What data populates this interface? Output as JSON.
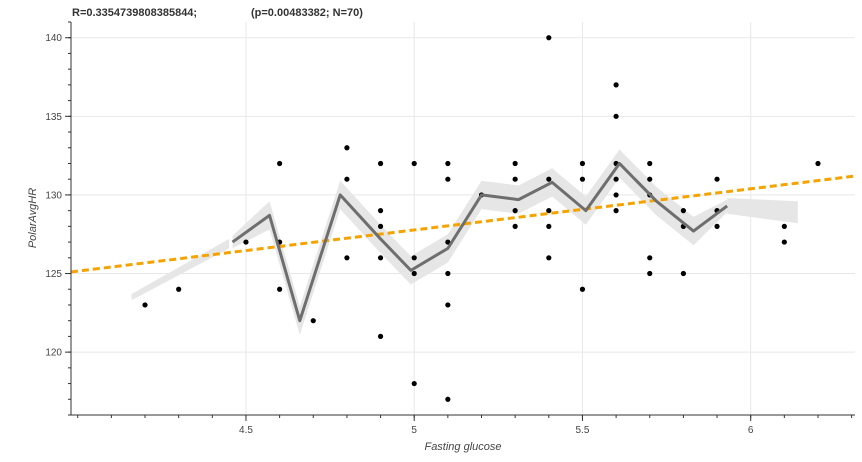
{
  "chart_data": {
    "type": "scatter",
    "title_stat": "R=0.3354739808385844;",
    "title_info": "(p=0.00483382; N=70)",
    "xlabel": "Fasting glucose",
    "ylabel": "PolarAvgHR",
    "xlim": [
      3.98,
      6.31
    ],
    "ylim": [
      116,
      141
    ],
    "x_ticks": [
      "4.5",
      "5",
      "5.5",
      "6"
    ],
    "y_ticks": [
      "120",
      "125",
      "130",
      "135",
      "140"
    ],
    "grid": true,
    "points": [
      {
        "x": 4.2,
        "y": 123
      },
      {
        "x": 4.3,
        "y": 124
      },
      {
        "x": 4.5,
        "y": 127
      },
      {
        "x": 4.6,
        "y": 132
      },
      {
        "x": 4.6,
        "y": 127
      },
      {
        "x": 4.6,
        "y": 124
      },
      {
        "x": 4.7,
        "y": 122
      },
      {
        "x": 4.8,
        "y": 133
      },
      {
        "x": 4.8,
        "y": 131
      },
      {
        "x": 4.8,
        "y": 126
      },
      {
        "x": 4.9,
        "y": 132
      },
      {
        "x": 4.9,
        "y": 129
      },
      {
        "x": 4.9,
        "y": 128
      },
      {
        "x": 4.9,
        "y": 126
      },
      {
        "x": 4.9,
        "y": 121
      },
      {
        "x": 5.0,
        "y": 132
      },
      {
        "x": 5.0,
        "y": 126
      },
      {
        "x": 5.0,
        "y": 125
      },
      {
        "x": 5.0,
        "y": 118
      },
      {
        "x": 5.1,
        "y": 132
      },
      {
        "x": 5.1,
        "y": 131
      },
      {
        "x": 5.1,
        "y": 127
      },
      {
        "x": 5.1,
        "y": 125
      },
      {
        "x": 5.1,
        "y": 123
      },
      {
        "x": 5.1,
        "y": 117
      },
      {
        "x": 5.2,
        "y": 130
      },
      {
        "x": 5.3,
        "y": 132
      },
      {
        "x": 5.3,
        "y": 131
      },
      {
        "x": 5.3,
        "y": 129
      },
      {
        "x": 5.3,
        "y": 128
      },
      {
        "x": 5.4,
        "y": 140
      },
      {
        "x": 5.4,
        "y": 131
      },
      {
        "x": 5.4,
        "y": 129
      },
      {
        "x": 5.4,
        "y": 128
      },
      {
        "x": 5.4,
        "y": 126
      },
      {
        "x": 5.5,
        "y": 132
      },
      {
        "x": 5.5,
        "y": 131
      },
      {
        "x": 5.5,
        "y": 124
      },
      {
        "x": 5.6,
        "y": 137
      },
      {
        "x": 5.6,
        "y": 135
      },
      {
        "x": 5.6,
        "y": 132
      },
      {
        "x": 5.6,
        "y": 131
      },
      {
        "x": 5.6,
        "y": 130
      },
      {
        "x": 5.6,
        "y": 129
      },
      {
        "x": 5.7,
        "y": 132
      },
      {
        "x": 5.7,
        "y": 131
      },
      {
        "x": 5.7,
        "y": 130
      },
      {
        "x": 5.7,
        "y": 126
      },
      {
        "x": 5.7,
        "y": 125
      },
      {
        "x": 5.8,
        "y": 129
      },
      {
        "x": 5.8,
        "y": 128
      },
      {
        "x": 5.8,
        "y": 125
      },
      {
        "x": 5.9,
        "y": 131
      },
      {
        "x": 5.9,
        "y": 129
      },
      {
        "x": 5.9,
        "y": 128
      },
      {
        "x": 6.1,
        "y": 128
      },
      {
        "x": 6.1,
        "y": 127
      },
      {
        "x": 6.2,
        "y": 132
      }
    ],
    "regression_line": {
      "x": [
        3.98,
        6.31
      ],
      "y": [
        125.1,
        131.2
      ],
      "color": "#f5a300"
    },
    "smooth_line": {
      "color": "#6e6e6e",
      "x": [
        4.46,
        4.57,
        4.66,
        4.78,
        4.9,
        4.99,
        5.1,
        5.2,
        5.31,
        5.41,
        5.51,
        5.61,
        5.72,
        5.83,
        5.93
      ],
      "y": [
        127,
        128.7,
        122,
        130,
        127.2,
        125.2,
        126.6,
        130,
        129.7,
        130.8,
        129,
        132,
        129.6,
        127.7,
        129.3
      ]
    },
    "band_color": "#e6e6e6",
    "marker_color": "#000000"
  }
}
